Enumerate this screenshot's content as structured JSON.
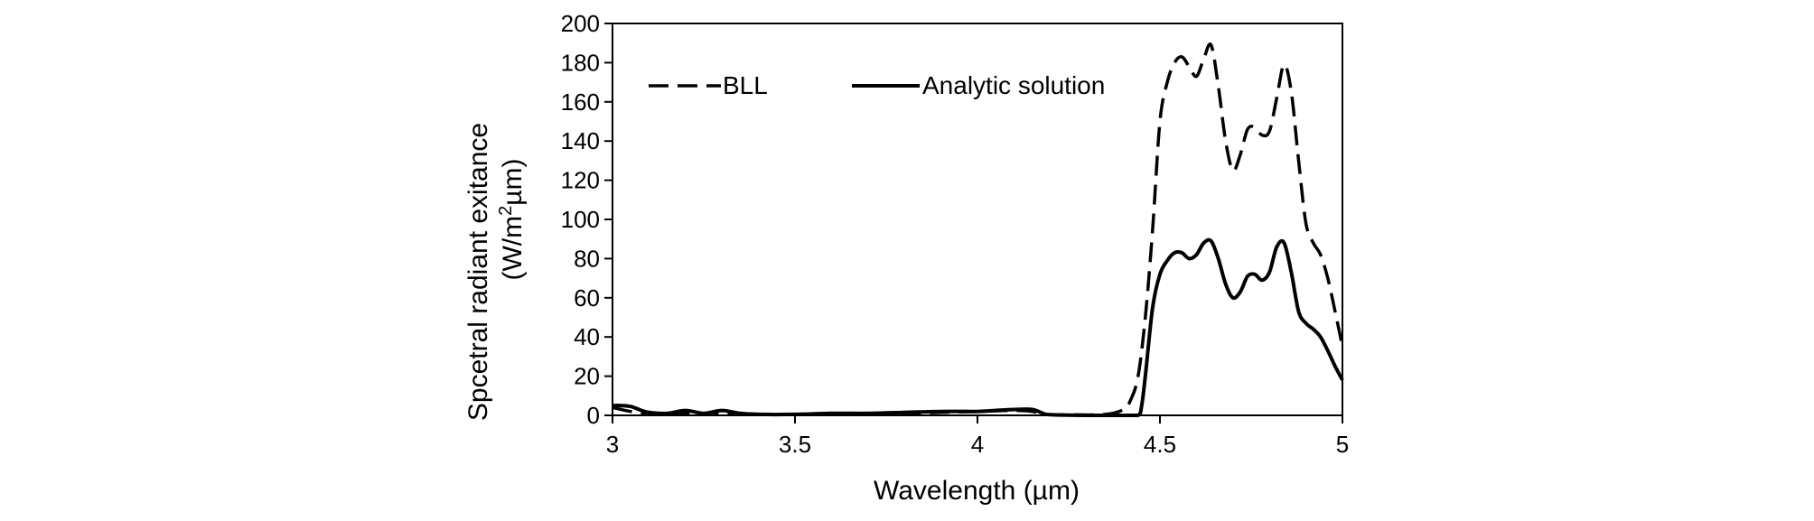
{
  "chart_data": {
    "type": "line",
    "title": "",
    "xlabel": "Wavelength (µm)",
    "ylabel_line1": "Spcetral radiant exitance",
    "ylabel_line2_pre": "(W/m",
    "ylabel_line2_sup": "2",
    "ylabel_line2_post": "µm)",
    "xlim": [
      3,
      5
    ],
    "ylim": [
      0,
      200
    ],
    "xticks": [
      3,
      3.5,
      4,
      4.5,
      5
    ],
    "xtick_labels": [
      "3",
      "3.5",
      "4",
      "4.5",
      "5"
    ],
    "yticks": [
      0,
      20,
      40,
      60,
      80,
      100,
      120,
      140,
      160,
      180,
      200
    ],
    "ytick_labels": [
      "0",
      "20",
      "40",
      "60",
      "80",
      "100",
      "120",
      "140",
      "160",
      "180",
      "200"
    ],
    "grid": false,
    "legend_position": "top-left",
    "series": [
      {
        "name": "BLL",
        "style": "dashed",
        "color": "#000000",
        "x": [
          3.0,
          3.05,
          3.1,
          3.15,
          3.2,
          3.25,
          3.3,
          3.35,
          3.4,
          3.5,
          3.6,
          3.7,
          3.8,
          3.9,
          4.0,
          4.1,
          4.15,
          4.18,
          4.25,
          4.35,
          4.4,
          4.42,
          4.44,
          4.46,
          4.48,
          4.5,
          4.52,
          4.54,
          4.56,
          4.58,
          4.6,
          4.62,
          4.64,
          4.66,
          4.68,
          4.7,
          4.72,
          4.74,
          4.76,
          4.78,
          4.8,
          4.82,
          4.84,
          4.86,
          4.88,
          4.9,
          4.92,
          4.94,
          4.96,
          4.98,
          5.0
        ],
        "y": [
          4,
          2,
          1,
          1,
          1,
          1,
          1,
          0.5,
          0.3,
          0.5,
          1,
          1,
          1,
          1.5,
          2,
          2.5,
          2,
          0.5,
          0.3,
          0.5,
          3,
          8,
          20,
          50,
          95,
          150,
          170,
          180,
          183,
          178,
          173,
          182,
          189,
          168,
          140,
          125,
          133,
          146,
          147,
          143,
          145,
          162,
          179,
          165,
          130,
          98,
          88,
          82,
          70,
          53,
          35
        ]
      },
      {
        "name": "Analytic solution",
        "style": "solid",
        "color": "#000000",
        "x": [
          3.0,
          3.02,
          3.05,
          3.08,
          3.1,
          3.15,
          3.2,
          3.25,
          3.3,
          3.35,
          3.4,
          3.5,
          3.6,
          3.7,
          3.8,
          3.9,
          4.0,
          4.05,
          4.1,
          4.15,
          4.18,
          4.2,
          4.3,
          4.4,
          4.44,
          4.45,
          4.46,
          4.48,
          4.5,
          4.52,
          4.54,
          4.56,
          4.58,
          4.6,
          4.62,
          4.64,
          4.66,
          4.68,
          4.7,
          4.72,
          4.74,
          4.76,
          4.78,
          4.8,
          4.82,
          4.84,
          4.86,
          4.88,
          4.9,
          4.92,
          4.94,
          4.96,
          4.98,
          5.0
        ],
        "y": [
          5,
          5,
          4.5,
          2.5,
          1.5,
          1,
          2.5,
          1,
          2.5,
          1,
          0.5,
          0.5,
          1,
          1,
          1.5,
          2,
          2,
          2.5,
          3,
          3,
          1,
          0.3,
          0,
          0,
          0,
          5,
          20,
          55,
          72,
          79,
          83,
          83,
          80,
          82,
          88,
          89,
          80,
          67,
          60,
          63,
          71,
          72,
          69,
          73,
          86,
          88,
          73,
          53,
          47,
          44,
          40,
          33,
          25,
          18
        ]
      }
    ]
  }
}
